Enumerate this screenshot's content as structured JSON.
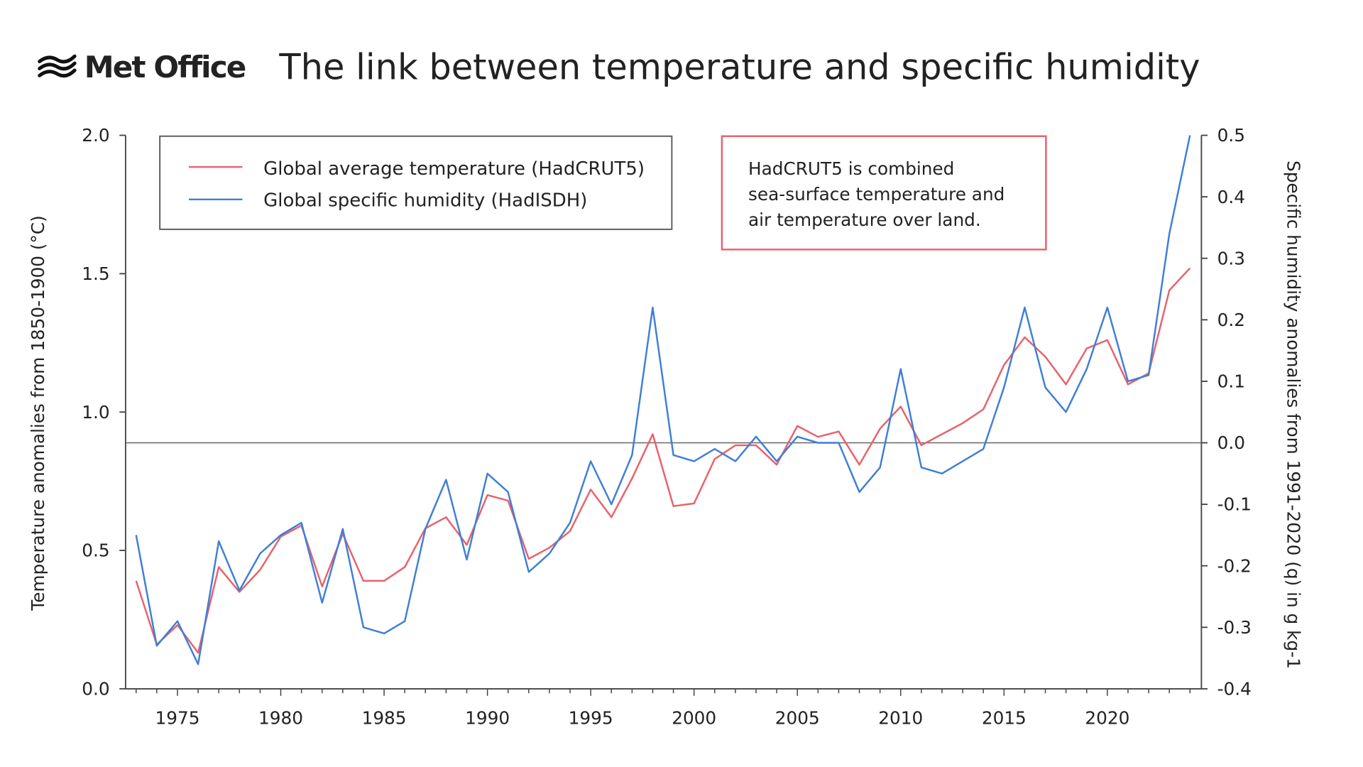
{
  "header": {
    "logo_text": "Met Office",
    "title": "The link between temperature and specific humidity"
  },
  "annotation": {
    "lines": [
      "HadCRUT5 is combined",
      "sea-surface temperature and",
      "air temperature over land."
    ],
    "border_color": "#e8626b"
  },
  "chart_data": {
    "type": "line",
    "title": "The link between temperature and specific humidity",
    "xlabel": "",
    "ylabel": "Temperature anomalies from 1850-1900 (°C)",
    "y2label": "Specific humidity anomalies from 1991-2020 (q) in g kg-1",
    "xlim": [
      1973,
      2024
    ],
    "ylim": [
      0.0,
      2.0
    ],
    "y2lim": [
      -0.4,
      0.5
    ],
    "x_ticks": [
      "1975",
      "1980",
      "1985",
      "1990",
      "1995",
      "2000",
      "2005",
      "2010",
      "2015",
      "2020"
    ],
    "y_ticks": [
      "0.0",
      "0.5",
      "1.0",
      "1.5",
      "2.0"
    ],
    "y2_ticks": [
      "-0.4",
      "-0.3",
      "-0.2",
      "-0.1",
      "0.0",
      "0.1",
      "0.2",
      "0.3",
      "0.4",
      "0.5"
    ],
    "reference_line": {
      "axis": "y2",
      "value": 0.0
    },
    "grid": false,
    "legend_position": "top-left",
    "x": [
      1973,
      1974,
      1975,
      1976,
      1977,
      1978,
      1979,
      1980,
      1981,
      1982,
      1983,
      1984,
      1985,
      1986,
      1987,
      1988,
      1989,
      1990,
      1991,
      1992,
      1993,
      1994,
      1995,
      1996,
      1997,
      1998,
      1999,
      2000,
      2001,
      2002,
      2003,
      2004,
      2005,
      2006,
      2007,
      2008,
      2009,
      2010,
      2011,
      2012,
      2013,
      2014,
      2015,
      2016,
      2017,
      2018,
      2019,
      2020,
      2021,
      2022,
      2023,
      2024
    ],
    "series": [
      {
        "name": "Global average temperature (HadCRUT5)",
        "axis": "left",
        "color": "#e8626b",
        "values": [
          0.39,
          0.16,
          0.23,
          0.13,
          0.44,
          0.35,
          0.43,
          0.55,
          0.59,
          0.37,
          0.56,
          0.39,
          0.39,
          0.44,
          0.58,
          0.62,
          0.52,
          0.7,
          0.68,
          0.47,
          0.51,
          0.57,
          0.72,
          0.62,
          0.76,
          0.92,
          0.66,
          0.67,
          0.83,
          0.88,
          0.88,
          0.81,
          0.95,
          0.91,
          0.93,
          0.81,
          0.94,
          1.02,
          0.88,
          0.92,
          0.96,
          1.01,
          1.17,
          1.27,
          1.2,
          1.1,
          1.23,
          1.26,
          1.1,
          1.14,
          1.44,
          1.52
        ]
      },
      {
        "name": "Global specific humidity (HadISDH)",
        "axis": "right",
        "color": "#3f7fd6",
        "values": [
          -0.15,
          -0.33,
          -0.29,
          -0.36,
          -0.16,
          -0.24,
          -0.18,
          -0.15,
          -0.13,
          -0.26,
          -0.14,
          -0.3,
          -0.31,
          -0.29,
          -0.14,
          -0.06,
          -0.19,
          -0.05,
          -0.08,
          -0.21,
          -0.18,
          -0.13,
          -0.03,
          -0.1,
          -0.02,
          0.22,
          -0.02,
          -0.03,
          -0.01,
          -0.03,
          0.01,
          -0.03,
          0.01,
          0.0,
          0.0,
          -0.08,
          -0.04,
          0.12,
          -0.04,
          -0.05,
          -0.03,
          -0.01,
          0.09,
          0.22,
          0.09,
          0.05,
          0.12,
          0.22,
          0.1,
          0.11,
          0.34,
          0.5
        ]
      }
    ]
  }
}
